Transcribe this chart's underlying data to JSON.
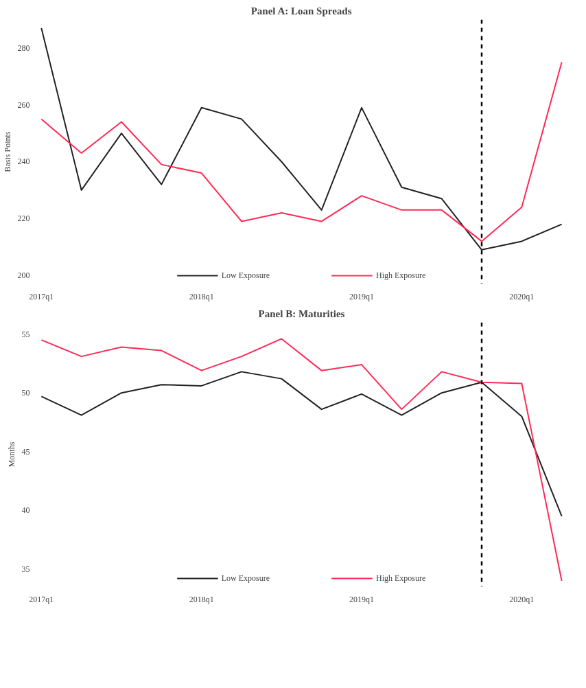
{
  "chart_data": [
    {
      "type": "line",
      "title": "Panel A: Loan Spreads",
      "ylabel": "Basis Points",
      "categories": [
        "2017q1",
        null,
        null,
        null,
        "2018q1",
        null,
        null,
        null,
        "2019q1",
        null,
        null,
        null,
        "2020q1",
        null
      ],
      "series": [
        {
          "name": "Low Exposure",
          "color": "#222222",
          "values": [
            287,
            230,
            250,
            232,
            259,
            255,
            240,
            223,
            259,
            231,
            227,
            209,
            212,
            218
          ]
        },
        {
          "name": "High Exposure",
          "color": "#ff2a55",
          "values": [
            255,
            243,
            254,
            239,
            236,
            219,
            222,
            219,
            228,
            223,
            223,
            212,
            224,
            275
          ]
        }
      ],
      "ylim": [
        197,
        290
      ],
      "yticks": [
        200,
        220,
        240,
        260,
        280
      ],
      "legend": "bottom"
    },
    {
      "type": "line",
      "title": "Panel B: Maturities",
      "ylabel": "Months",
      "categories": [
        "2017q1",
        null,
        null,
        null,
        "2018q1",
        null,
        null,
        null,
        "2019q1",
        null,
        null,
        null,
        "2020q1",
        null
      ],
      "series": [
        {
          "name": "Low Exposure",
          "color": "#222222",
          "values": [
            49.7,
            48.1,
            50,
            50.7,
            50.6,
            51.8,
            51.2,
            48.6,
            49.9,
            48.1,
            50,
            50.9,
            48,
            39.5
          ]
        },
        {
          "name": "High Exposure",
          "color": "#ff2a55",
          "values": [
            54.5,
            53.1,
            53.9,
            53.6,
            51.9,
            53.1,
            54.6,
            51.9,
            52.4,
            48.6,
            51.8,
            50.9,
            50.8,
            34
          ]
        }
      ],
      "ylim": [
        33.5,
        56
      ],
      "yticks": [
        35,
        40,
        45,
        50,
        55
      ],
      "legend": "bottom"
    }
  ]
}
